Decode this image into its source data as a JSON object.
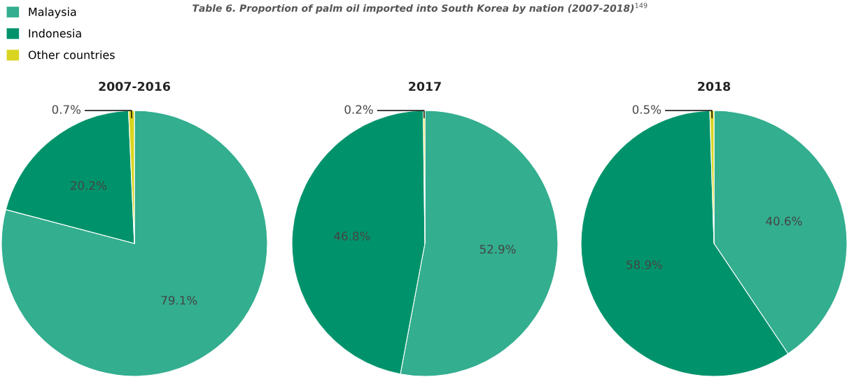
{
  "chart_data": [
    {
      "type": "pie",
      "title": "2007-2016",
      "annotations": [
        "Table 6. Proportion of palm oil imported into South Korea by nation (2007-2018)$^{149}$"
      ],
      "legend": "top left",
      "categories": [
        "Malaysia",
        "Indonesia",
        "Other countries"
      ],
      "values": [
        79.1,
        20.2,
        0.7
      ],
      "value_labels": [
        "79.1%",
        "20.2%",
        "0.7%"
      ],
      "colors": [
        "#33ae8f",
        "#00936b",
        "#d9d521"
      ]
    },
    {
      "type": "pie",
      "title": "2017",
      "categories": [
        null,
        null,
        null
      ],
      "values": [
        52.9,
        46.8,
        0.2
      ],
      "value_labels": [
        "52.9%",
        "46.8%",
        "0.2%"
      ],
      "colors": [
        "#33ae8f",
        "#00936b",
        "#d9d521"
      ]
    },
    {
      "type": "pie",
      "title": "2018",
      "categories": [
        null,
        null,
        null
      ],
      "values": [
        40.6,
        58.9,
        0.5
      ],
      "value_labels": [
        "40.6%",
        "58.9%",
        "0.5%"
      ],
      "colors": [
        "#33ae8f",
        "#00936b",
        "#d9d521"
      ]
    }
  ]
}
